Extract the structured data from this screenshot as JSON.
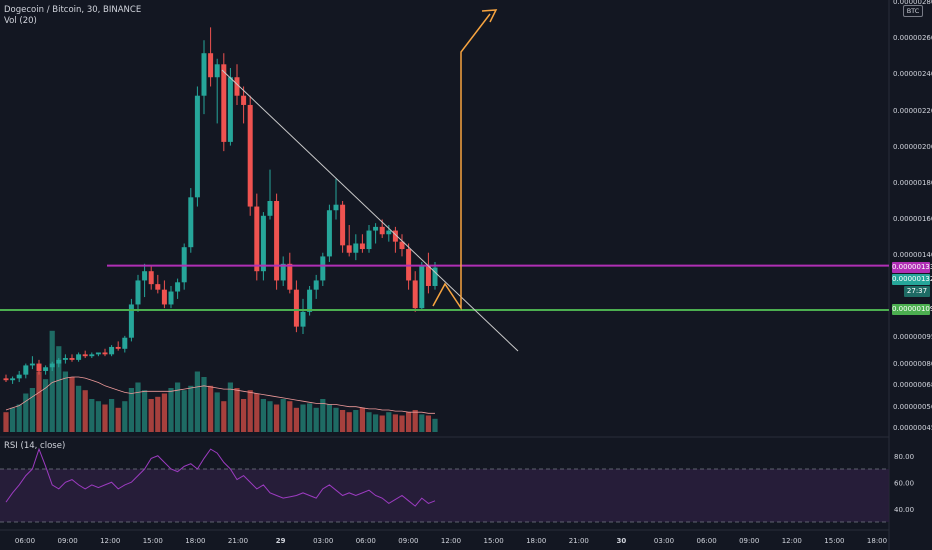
{
  "header": {
    "title": "Dogecoin / Bitcoin, 30, BINANCE",
    "volume_label": "Vol (20)",
    "rsi_label": "RSI (14, close)"
  },
  "currency_button": "BTC",
  "colors": {
    "background": "#131722",
    "bull": "#26a69a",
    "bear": "#ef5350",
    "vol_bull": "#1e6b64",
    "vol_bear": "#a6403d",
    "resistance": "#b02fb5",
    "support": "#4caf50",
    "projection": "#f7a440",
    "trendline": "#c9c9c9",
    "rsi": "#9c3bc0"
  },
  "price_axis": {
    "labels": [
      "0.00000260",
      "0.00000240",
      "0.00000220",
      "0.00000200",
      "0.00000180",
      "0.00000160",
      "0.00000140",
      "0.00000095",
      "0.00000080",
      "0.00000068",
      "0.00000056",
      "0.00000045"
    ],
    "top_partial": "0.00000280"
  },
  "price_tags": {
    "resistance": "0.00000133",
    "last": "0.00000132",
    "countdown": "27:37",
    "support": "0.00000109"
  },
  "rsi_axis": [
    "80.00",
    "60.00",
    "40.00"
  ],
  "time_axis": [
    "06:00",
    "09:00",
    "12:00",
    "15:00",
    "18:00",
    "21:00",
    "29",
    "03:00",
    "06:00",
    "09:00",
    "12:00",
    "15:00",
    "18:00",
    "21:00",
    "30",
    "03:00",
    "06:00",
    "09:00",
    "12:00",
    "15:00",
    "18:00"
  ],
  "chart_data": {
    "type": "candlestick",
    "symbol": "Dogecoin / Bitcoin",
    "interval": "30",
    "exchange": "BINANCE",
    "candles": [
      {
        "o": 0.72,
        "h": 0.74,
        "l": 0.7,
        "c": 0.71
      },
      {
        "o": 0.71,
        "h": 0.73,
        "l": 0.69,
        "c": 0.72
      },
      {
        "o": 0.72,
        "h": 0.76,
        "l": 0.7,
        "c": 0.74
      },
      {
        "o": 0.74,
        "h": 0.8,
        "l": 0.72,
        "c": 0.79
      },
      {
        "o": 0.79,
        "h": 0.84,
        "l": 0.77,
        "c": 0.8
      },
      {
        "o": 0.8,
        "h": 0.82,
        "l": 0.74,
        "c": 0.76
      },
      {
        "o": 0.76,
        "h": 0.79,
        "l": 0.74,
        "c": 0.78
      },
      {
        "o": 0.78,
        "h": 0.81,
        "l": 0.76,
        "c": 0.8
      },
      {
        "o": 0.8,
        "h": 0.83,
        "l": 0.78,
        "c": 0.82
      },
      {
        "o": 0.82,
        "h": 0.85,
        "l": 0.8,
        "c": 0.83
      },
      {
        "o": 0.83,
        "h": 0.85,
        "l": 0.81,
        "c": 0.82
      },
      {
        "o": 0.82,
        "h": 0.86,
        "l": 0.81,
        "c": 0.85
      },
      {
        "o": 0.85,
        "h": 0.87,
        "l": 0.83,
        "c": 0.84
      },
      {
        "o": 0.84,
        "h": 0.86,
        "l": 0.83,
        "c": 0.85
      },
      {
        "o": 0.85,
        "h": 0.86,
        "l": 0.84,
        "c": 0.86
      },
      {
        "o": 0.86,
        "h": 0.88,
        "l": 0.84,
        "c": 0.85
      },
      {
        "o": 0.85,
        "h": 0.9,
        "l": 0.84,
        "c": 0.89
      },
      {
        "o": 0.89,
        "h": 0.92,
        "l": 0.87,
        "c": 0.88
      },
      {
        "o": 0.88,
        "h": 0.95,
        "l": 0.86,
        "c": 0.94
      },
      {
        "o": 0.94,
        "h": 1.15,
        "l": 0.92,
        "c": 1.12
      },
      {
        "o": 1.12,
        "h": 1.28,
        "l": 1.08,
        "c": 1.25
      },
      {
        "o": 1.25,
        "h": 1.34,
        "l": 1.16,
        "c": 1.3
      },
      {
        "o": 1.3,
        "h": 1.33,
        "l": 1.2,
        "c": 1.23
      },
      {
        "o": 1.23,
        "h": 1.28,
        "l": 1.18,
        "c": 1.2
      },
      {
        "o": 1.2,
        "h": 1.25,
        "l": 1.1,
        "c": 1.12
      },
      {
        "o": 1.12,
        "h": 1.22,
        "l": 1.1,
        "c": 1.19
      },
      {
        "o": 1.19,
        "h": 1.26,
        "l": 1.15,
        "c": 1.24
      },
      {
        "o": 1.24,
        "h": 1.45,
        "l": 1.2,
        "c": 1.43
      },
      {
        "o": 1.43,
        "h": 1.75,
        "l": 1.4,
        "c": 1.7
      },
      {
        "o": 1.7,
        "h": 2.3,
        "l": 1.65,
        "c": 2.25
      },
      {
        "o": 2.25,
        "h": 2.55,
        "l": 2.15,
        "c": 2.48
      },
      {
        "o": 2.48,
        "h": 2.62,
        "l": 2.3,
        "c": 2.35
      },
      {
        "o": 2.35,
        "h": 2.45,
        "l": 2.1,
        "c": 2.42
      },
      {
        "o": 2.42,
        "h": 2.48,
        "l": 1.95,
        "c": 2.0
      },
      {
        "o": 2.0,
        "h": 2.4,
        "l": 1.98,
        "c": 2.35
      },
      {
        "o": 2.35,
        "h": 2.42,
        "l": 2.2,
        "c": 2.25
      },
      {
        "o": 2.25,
        "h": 2.3,
        "l": 2.1,
        "c": 2.2
      },
      {
        "o": 2.2,
        "h": 2.25,
        "l": 1.6,
        "c": 1.65
      },
      {
        "o": 1.65,
        "h": 1.72,
        "l": 1.25,
        "c": 1.3
      },
      {
        "o": 1.3,
        "h": 1.62,
        "l": 1.25,
        "c": 1.6
      },
      {
        "o": 1.6,
        "h": 1.85,
        "l": 1.58,
        "c": 1.68
      },
      {
        "o": 1.68,
        "h": 1.72,
        "l": 1.2,
        "c": 1.25
      },
      {
        "o": 1.25,
        "h": 1.38,
        "l": 1.22,
        "c": 1.34
      },
      {
        "o": 1.34,
        "h": 1.4,
        "l": 1.18,
        "c": 1.2
      },
      {
        "o": 1.2,
        "h": 1.25,
        "l": 0.97,
        "c": 1.0
      },
      {
        "o": 1.0,
        "h": 1.15,
        "l": 0.96,
        "c": 1.08
      },
      {
        "o": 1.08,
        "h": 1.22,
        "l": 1.06,
        "c": 1.2
      },
      {
        "o": 1.2,
        "h": 1.28,
        "l": 1.15,
        "c": 1.25
      },
      {
        "o": 1.25,
        "h": 1.4,
        "l": 1.22,
        "c": 1.38
      },
      {
        "o": 1.38,
        "h": 1.66,
        "l": 1.35,
        "c": 1.63
      },
      {
        "o": 1.63,
        "h": 1.8,
        "l": 1.58,
        "c": 1.66
      },
      {
        "o": 1.66,
        "h": 1.68,
        "l": 1.4,
        "c": 1.44
      },
      {
        "o": 1.44,
        "h": 1.55,
        "l": 1.38,
        "c": 1.4
      },
      {
        "o": 1.4,
        "h": 1.5,
        "l": 1.36,
        "c": 1.45
      },
      {
        "o": 1.45,
        "h": 1.5,
        "l": 1.4,
        "c": 1.42
      },
      {
        "o": 1.42,
        "h": 1.55,
        "l": 1.4,
        "c": 1.52
      },
      {
        "o": 1.52,
        "h": 1.56,
        "l": 1.45,
        "c": 1.54
      },
      {
        "o": 1.54,
        "h": 1.58,
        "l": 1.48,
        "c": 1.5
      },
      {
        "o": 1.5,
        "h": 1.55,
        "l": 1.46,
        "c": 1.52
      },
      {
        "o": 1.52,
        "h": 1.54,
        "l": 1.4,
        "c": 1.46
      },
      {
        "o": 1.46,
        "h": 1.5,
        "l": 1.38,
        "c": 1.42
      },
      {
        "o": 1.42,
        "h": 1.45,
        "l": 1.2,
        "c": 1.25
      },
      {
        "o": 1.25,
        "h": 1.3,
        "l": 1.08,
        "c": 1.1
      },
      {
        "o": 1.1,
        "h": 1.35,
        "l": 1.09,
        "c": 1.33
      },
      {
        "o": 1.33,
        "h": 1.4,
        "l": 1.18,
        "c": 1.22
      },
      {
        "o": 1.22,
        "h": 1.35,
        "l": 1.2,
        "c": 1.32
      }
    ],
    "volume": [
      0.18,
      0.22,
      0.25,
      0.35,
      0.4,
      0.55,
      0.48,
      0.92,
      0.78,
      0.55,
      0.5,
      0.42,
      0.38,
      0.3,
      0.28,
      0.25,
      0.3,
      0.22,
      0.28,
      0.4,
      0.45,
      0.38,
      0.3,
      0.32,
      0.35,
      0.4,
      0.45,
      0.38,
      0.42,
      0.55,
      0.5,
      0.42,
      0.36,
      0.28,
      0.45,
      0.4,
      0.3,
      0.38,
      0.35,
      0.3,
      0.28,
      0.25,
      0.3,
      0.28,
      0.22,
      0.25,
      0.26,
      0.22,
      0.3,
      0.25,
      0.22,
      0.2,
      0.18,
      0.2,
      0.22,
      0.18,
      0.16,
      0.15,
      0.18,
      0.16,
      0.15,
      0.18,
      0.2,
      0.16,
      0.15,
      0.12
    ],
    "volume_ma": [
      0.2,
      0.22,
      0.24,
      0.28,
      0.32,
      0.36,
      0.4,
      0.45,
      0.47,
      0.49,
      0.5,
      0.5,
      0.49,
      0.47,
      0.45,
      0.42,
      0.4,
      0.38,
      0.36,
      0.35,
      0.36,
      0.37,
      0.37,
      0.37,
      0.37,
      0.37,
      0.38,
      0.39,
      0.4,
      0.41,
      0.42,
      0.41,
      0.4,
      0.39,
      0.39,
      0.38,
      0.37,
      0.36,
      0.35,
      0.34,
      0.33,
      0.32,
      0.31,
      0.3,
      0.29,
      0.28,
      0.27,
      0.26,
      0.26,
      0.25,
      0.25,
      0.24,
      0.23,
      0.23,
      0.22,
      0.21,
      0.21,
      0.2,
      0.2,
      0.19,
      0.19,
      0.18,
      0.18,
      0.18,
      0.17,
      0.17
    ],
    "rsi": [
      45,
      52,
      58,
      65,
      70,
      85,
      72,
      58,
      55,
      60,
      62,
      58,
      55,
      58,
      56,
      58,
      60,
      55,
      58,
      60,
      65,
      70,
      78,
      80,
      75,
      70,
      68,
      72,
      74,
      70,
      78,
      85,
      82,
      75,
      70,
      62,
      65,
      60,
      55,
      58,
      52,
      50,
      48,
      49,
      50,
      52,
      50,
      48,
      55,
      58,
      54,
      50,
      52,
      50,
      52,
      54,
      50,
      48,
      44,
      47,
      50,
      46,
      42,
      48,
      44,
      46
    ],
    "resistance_level": 1.33,
    "support_level": 1.09,
    "last_price": 1.32,
    "rsi_bands": [
      70,
      30
    ],
    "rsi_ticks": [
      80,
      60,
      40
    ]
  }
}
